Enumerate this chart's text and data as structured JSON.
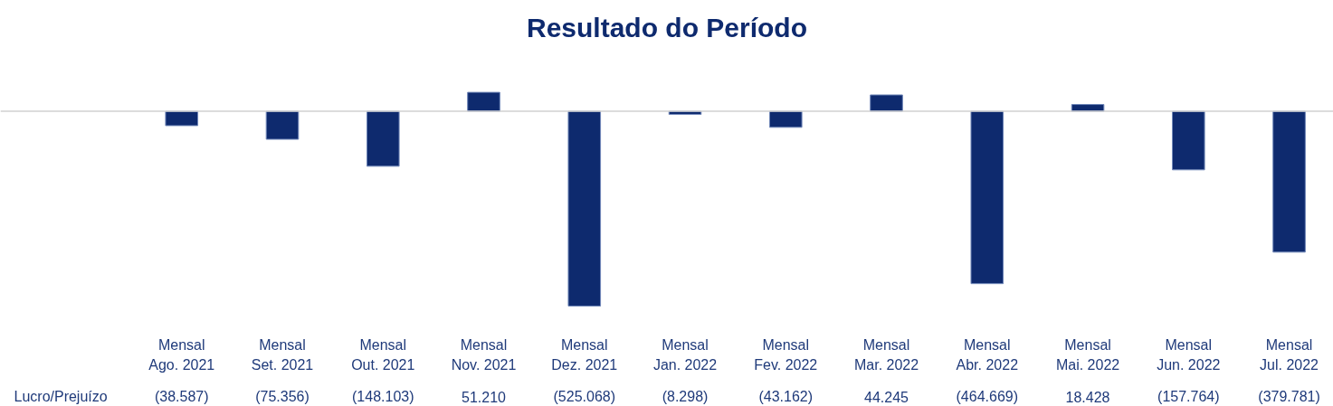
{
  "chart_data": {
    "type": "bar",
    "title": "Resultado do Período",
    "categories": [
      "Mensal\nAgo. 2021",
      "Mensal\nSet. 2021",
      "Mensal\nOut. 2021",
      "Mensal\nNov. 2021",
      "Mensal\nDez. 2021",
      "Mensal\nJan. 2022",
      "Mensal\nFev. 2022",
      "Mensal\nMar. 2022",
      "Mensal\nAbr. 2022",
      "Mensal\nMai. 2022",
      "Mensal\nJun. 2022",
      "Mensal\nJul. 2022"
    ],
    "series": [
      {
        "name": "Lucro/Prejuízo",
        "color": "#0e2a6e",
        "values": [
          -38587,
          -75356,
          -148103,
          51210,
          -525068,
          -8298,
          -43162,
          44245,
          -464669,
          18428,
          -157764,
          -379781
        ],
        "value_labels": [
          "(38.587)",
          "(75.356)",
          "(148.103)",
          "51.210",
          "(525.068)",
          "(8.298)",
          "(43.162)",
          "44.245",
          "(464.669)",
          "18.428",
          "(157.764)",
          "(379.781)"
        ]
      }
    ],
    "grid": false
  }
}
